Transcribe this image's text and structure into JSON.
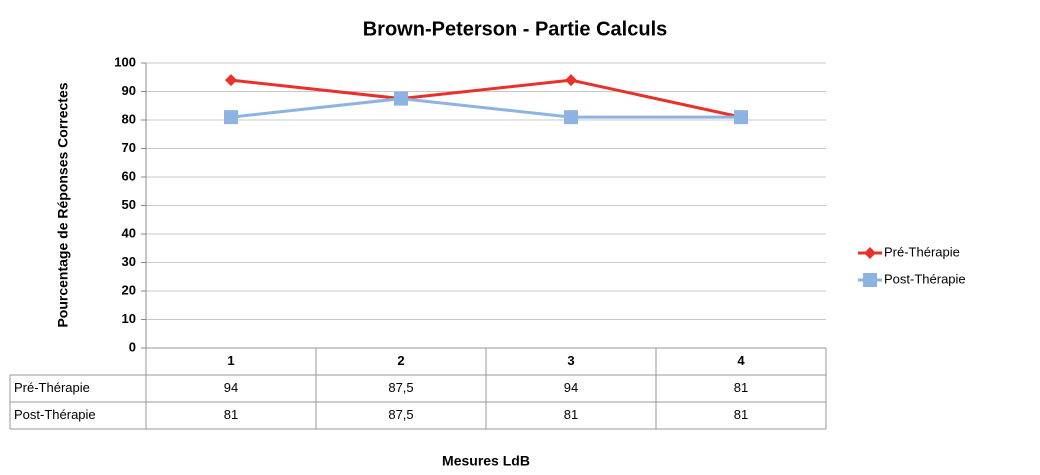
{
  "chart_data": {
    "type": "line",
    "title": "Brown-Peterson - Partie Calculs",
    "y_label": "Pourcentage de Réponses Correctes",
    "x_label": "Mesures LdB",
    "categories": [
      "1",
      "2",
      "3",
      "4"
    ],
    "series": [
      {
        "name": "Pré-Thérapie",
        "color": "#e8312a",
        "marker": "diamond",
        "values": [
          94,
          87.5,
          94,
          81
        ],
        "value_labels": [
          "94",
          "87,5",
          "94",
          "81"
        ]
      },
      {
        "name": "Post-Thérapie",
        "color": "#8db3e2",
        "marker": "square",
        "values": [
          81,
          87.5,
          81,
          81
        ],
        "value_labels": [
          "81",
          "87,5",
          "81",
          "81"
        ]
      }
    ],
    "ylim": [
      0,
      100
    ],
    "yticks": [
      0,
      10,
      20,
      30,
      40,
      50,
      60,
      70,
      80,
      90,
      100
    ],
    "grid": true,
    "legend": "right",
    "data_table": true
  }
}
